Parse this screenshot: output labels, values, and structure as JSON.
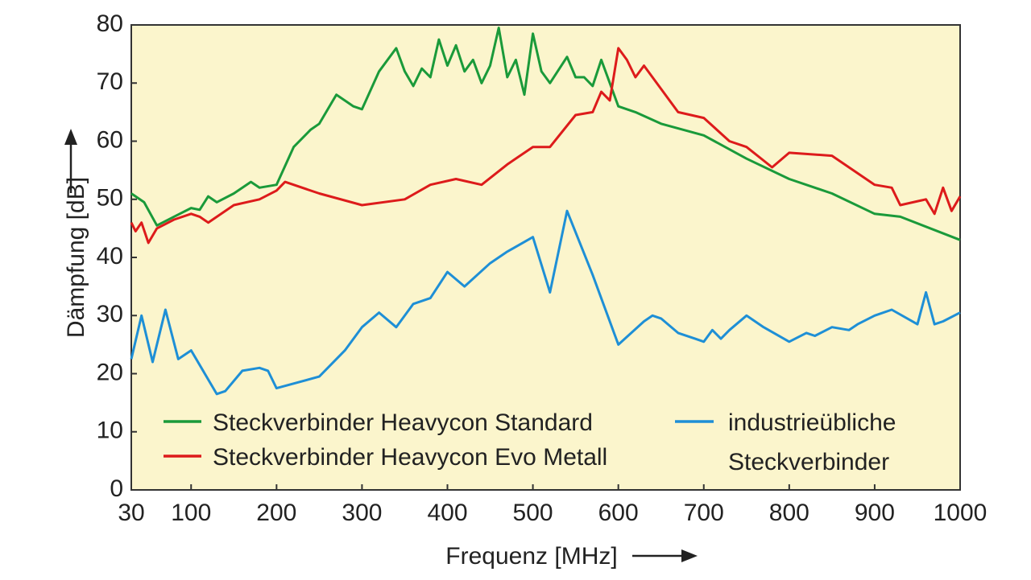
{
  "chart_data": {
    "type": "line",
    "title": "",
    "xlabel": "Frequenz [MHz]",
    "ylabel": "Dämpfung [dB]",
    "xlim": [
      30,
      1000
    ],
    "ylim": [
      0,
      80
    ],
    "grid": false,
    "plot_background": "#fbf5cc",
    "x_ticks": [
      30,
      100,
      200,
      300,
      400,
      500,
      600,
      700,
      800,
      900,
      1000
    ],
    "y_ticks": [
      0,
      10,
      20,
      30,
      40,
      50,
      60,
      70,
      80
    ],
    "legend_placement": "bottom",
    "series": [
      {
        "name": "Steckverbinder Heavycon Standard",
        "color": "#1a9a3a",
        "x": [
          30,
          45,
          60,
          80,
          100,
          110,
          120,
          130,
          150,
          170,
          180,
          200,
          220,
          240,
          250,
          270,
          290,
          300,
          320,
          340,
          350,
          360,
          370,
          380,
          390,
          400,
          410,
          420,
          430,
          440,
          450,
          460,
          470,
          480,
          490,
          500,
          510,
          520,
          540,
          550,
          560,
          570,
          580,
          600,
          620,
          650,
          700,
          750,
          800,
          850,
          900,
          930,
          1000
        ],
        "y": [
          51,
          49.5,
          45.5,
          47,
          48.5,
          48.2,
          50.5,
          49.5,
          51,
          53,
          52,
          52.5,
          59,
          62,
          63,
          68,
          66,
          65.5,
          72,
          76,
          72,
          69.5,
          72.5,
          71,
          77.5,
          73,
          76.5,
          72,
          74,
          70,
          73,
          79.5,
          71,
          74,
          68,
          78.5,
          72,
          70,
          74.5,
          71,
          71,
          69.5,
          74,
          66,
          65,
          63,
          61,
          57,
          53.5,
          51,
          47.5,
          47,
          43
        ]
      },
      {
        "name": "Steckverbinder Heavycon Evo Metall",
        "color": "#dd1b1b",
        "x": [
          30,
          35,
          42,
          50,
          60,
          80,
          100,
          110,
          120,
          150,
          180,
          200,
          210,
          250,
          300,
          350,
          380,
          410,
          440,
          470,
          500,
          520,
          550,
          570,
          580,
          590,
          600,
          610,
          620,
          630,
          650,
          670,
          700,
          730,
          750,
          780,
          800,
          850,
          900,
          920,
          930,
          960,
          970,
          980,
          990,
          1000
        ],
        "y": [
          46,
          44.5,
          46,
          42.5,
          45,
          46.5,
          47.5,
          47,
          46,
          49,
          50,
          51.5,
          53,
          51,
          49,
          50,
          52.5,
          53.5,
          52.5,
          56,
          59,
          59,
          64.5,
          65,
          68.5,
          67,
          76,
          74,
          71,
          73,
          69,
          65,
          64,
          60,
          59,
          55.5,
          58,
          57.5,
          52.5,
          52,
          49,
          50,
          47.5,
          52,
          48,
          50.5
        ]
      },
      {
        "name": "industrieübliche Steckverbinder",
        "color": "#1e8fd6",
        "x": [
          30,
          42,
          55,
          70,
          85,
          100,
          120,
          130,
          140,
          160,
          180,
          190,
          200,
          250,
          280,
          300,
          320,
          340,
          360,
          380,
          400,
          420,
          450,
          470,
          500,
          520,
          540,
          570,
          600,
          630,
          640,
          650,
          670,
          690,
          700,
          710,
          720,
          730,
          750,
          770,
          800,
          820,
          830,
          850,
          870,
          880,
          900,
          920,
          950,
          960,
          970,
          980,
          1000
        ],
        "y": [
          22.5,
          30,
          22,
          31,
          22.5,
          24,
          19,
          16.5,
          17,
          20.5,
          21,
          20.5,
          17.5,
          19.5,
          24,
          28,
          30.5,
          28,
          32,
          33,
          37.5,
          35,
          39,
          41,
          43.5,
          34,
          48,
          37,
          25,
          29,
          30,
          29.5,
          27,
          26,
          25.5,
          27.5,
          26,
          27.5,
          30,
          28,
          25.5,
          27,
          26.5,
          28,
          27.5,
          28.5,
          30,
          31,
          28.5,
          34,
          28.5,
          29,
          30.5
        ]
      }
    ],
    "legend": {
      "col1": [
        "Steckverbinder Heavycon Standard",
        "Steckverbinder Heavycon Evo Metall"
      ],
      "col2_line1": "industrieübliche",
      "col2_line2": "Steckverbinder"
    }
  }
}
